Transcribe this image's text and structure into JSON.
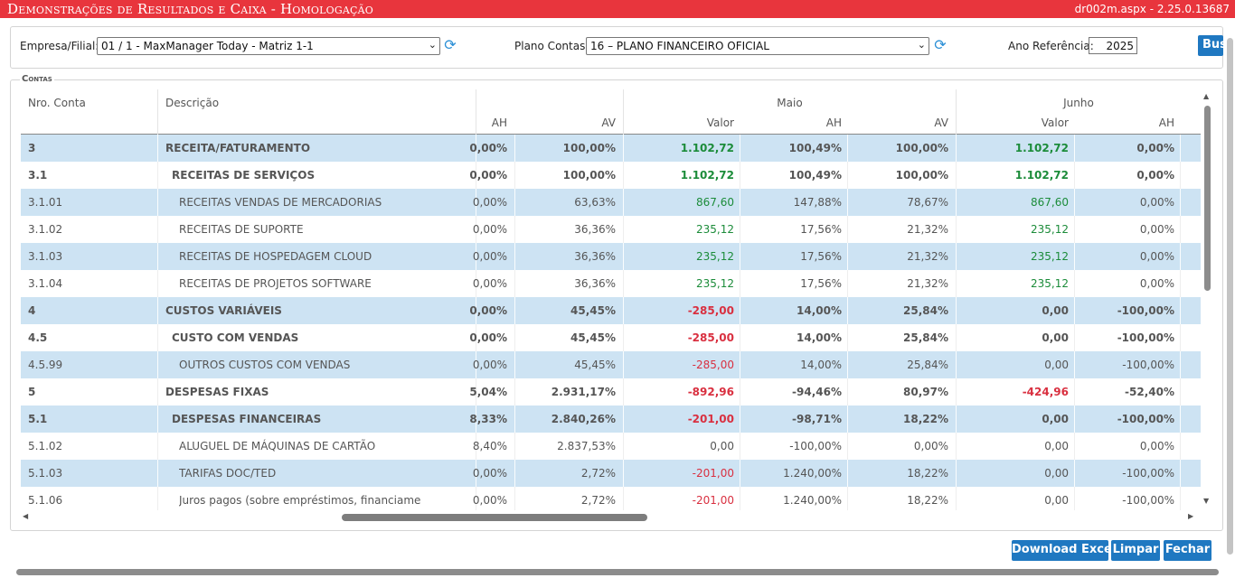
{
  "window": {
    "title": "Demonstrações de Resultados e Caixa  - Homologação",
    "version": "dr002m.aspx - 2.25.0.13687"
  },
  "filters": {
    "empresa_label": "Empresa/Filial:",
    "empresa_value": "01 / 1 - MaxManager Today - Matriz 1-1",
    "plano_label": "Plano Contas:",
    "plano_value": "16 – PLANO FINANCEIRO OFICIAL",
    "ano_label": "Ano Referência:",
    "ano_value": "2025",
    "buscar_label": "Buscar"
  },
  "contas": {
    "legend": "Contas",
    "headers": {
      "nro_conta": "Nro. Conta",
      "descricao": "Descrição",
      "month_maio": "Maio",
      "month_junho": "Junho",
      "ah": "AH",
      "av": "AV",
      "valor": "Valor"
    },
    "rows": [
      {
        "conta": "3",
        "desc": "RECEITA/FATURAMENTO",
        "ah_prev": "0,00%",
        "av_prev": "100,00%",
        "maio_valor": "1.102,72",
        "maio_ah": "100,49%",
        "maio_av": "100,00%",
        "junho_valor": "1.102,72",
        "junho_ah": "0,00%"
      },
      {
        "conta": "3.1",
        "desc": "RECEITAS DE SERVIÇOS",
        "ah_prev": "0,00%",
        "av_prev": "100,00%",
        "maio_valor": "1.102,72",
        "maio_ah": "100,49%",
        "maio_av": "100,00%",
        "junho_valor": "1.102,72",
        "junho_ah": "0,00%"
      },
      {
        "conta": "3.1.01",
        "desc": "RECEITAS VENDAS DE MERCADORIAS",
        "ah_prev": "0,00%",
        "av_prev": "63,63%",
        "maio_valor": "867,60",
        "maio_ah": "147,88%",
        "maio_av": "78,67%",
        "junho_valor": "867,60",
        "junho_ah": "0,00%"
      },
      {
        "conta": "3.1.02",
        "desc": "RECEITAS DE SUPORTE",
        "ah_prev": "0,00%",
        "av_prev": "36,36%",
        "maio_valor": "235,12",
        "maio_ah": "17,56%",
        "maio_av": "21,32%",
        "junho_valor": "235,12",
        "junho_ah": "0,00%"
      },
      {
        "conta": "3.1.03",
        "desc": "RECEITAS DE HOSPEDAGEM CLOUD",
        "ah_prev": "0,00%",
        "av_prev": "36,36%",
        "maio_valor": "235,12",
        "maio_ah": "17,56%",
        "maio_av": "21,32%",
        "junho_valor": "235,12",
        "junho_ah": "0,00%"
      },
      {
        "conta": "3.1.04",
        "desc": "RECEITAS DE PROJETOS SOFTWARE",
        "ah_prev": "0,00%",
        "av_prev": "36,36%",
        "maio_valor": "235,12",
        "maio_ah": "17,56%",
        "maio_av": "21,32%",
        "junho_valor": "235,12",
        "junho_ah": "0,00%"
      },
      {
        "conta": "4",
        "desc": "CUSTOS VARIÁVEIS",
        "ah_prev": "0,00%",
        "av_prev": "45,45%",
        "maio_valor": "-285,00",
        "maio_ah": "14,00%",
        "maio_av": "25,84%",
        "junho_valor": "0,00",
        "junho_ah": "-100,00%"
      },
      {
        "conta": "4.5",
        "desc": "CUSTO COM VENDAS",
        "ah_prev": "0,00%",
        "av_prev": "45,45%",
        "maio_valor": "-285,00",
        "maio_ah": "14,00%",
        "maio_av": "25,84%",
        "junho_valor": "0,00",
        "junho_ah": "-100,00%"
      },
      {
        "conta": "4.5.99",
        "desc": "OUTROS CUSTOS COM VENDAS",
        "ah_prev": "0,00%",
        "av_prev": "45,45%",
        "maio_valor": "-285,00",
        "maio_ah": "14,00%",
        "maio_av": "25,84%",
        "junho_valor": "0,00",
        "junho_ah": "-100,00%"
      },
      {
        "conta": "5",
        "desc": "DESPESAS FIXAS",
        "ah_prev": "5,04%",
        "av_prev": "2.931,17%",
        "maio_valor": "-892,96",
        "maio_ah": "-94,46%",
        "maio_av": "80,97%",
        "junho_valor": "-424,96",
        "junho_ah": "-52,40%"
      },
      {
        "conta": "5.1",
        "desc": "DESPESAS FINANCEIRAS",
        "ah_prev": "8,33%",
        "av_prev": "2.840,26%",
        "maio_valor": "-201,00",
        "maio_ah": "-98,71%",
        "maio_av": "18,22%",
        "junho_valor": "0,00",
        "junho_ah": "-100,00%"
      },
      {
        "conta": "5.1.02",
        "desc": "ALUGUEL DE MÁQUINAS DE CARTÃO",
        "ah_prev": "8,40%",
        "av_prev": "2.837,53%",
        "maio_valor": "0,00",
        "maio_ah": "-100,00%",
        "maio_av": "0,00%",
        "junho_valor": "0,00",
        "junho_ah": "0,00%"
      },
      {
        "conta": "5.1.03",
        "desc": "TARIFAS DOC/TED",
        "ah_prev": "0,00%",
        "av_prev": "2,72%",
        "maio_valor": "-201,00",
        "maio_ah": "1.240,00%",
        "maio_av": "18,22%",
        "junho_valor": "0,00",
        "junho_ah": "-100,00%"
      },
      {
        "conta": "5.1.06",
        "desc": "Juros pagos (sobre empréstimos, financiame",
        "ah_prev": "0,00%",
        "av_prev": "2,72%",
        "maio_valor": "-201,00",
        "maio_ah": "1.240,00%",
        "maio_av": "18,22%",
        "junho_valor": "0,00",
        "junho_ah": "-100,00%"
      }
    ]
  },
  "footer": {
    "download_excel_label": "Download Excel",
    "limpar_label": "Limpar",
    "fechar_label": "Fechar"
  },
  "colors": {
    "titlebar": "#e8353d",
    "button": "#1f78c1",
    "row_alt": "#cde3f3",
    "positive": "#1c8c3a",
    "negative": "#d93040"
  },
  "icons": {
    "refresh": "refresh-icon",
    "dropdown": "chevron-down-icon"
  }
}
